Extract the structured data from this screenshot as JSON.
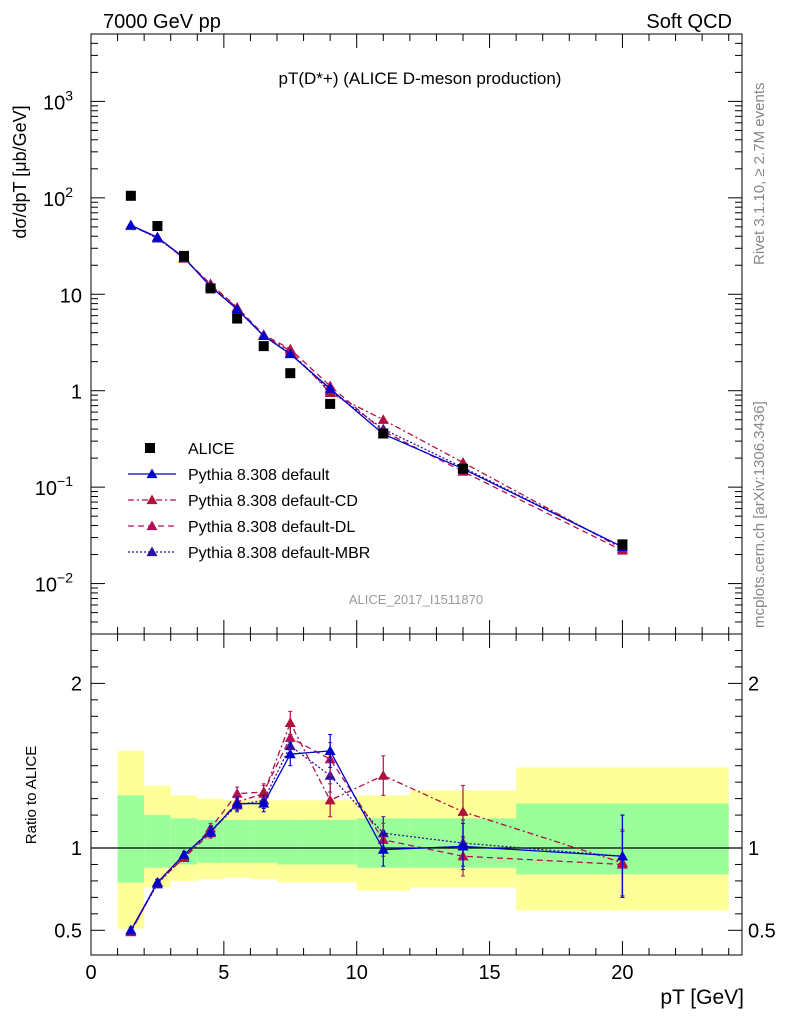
{
  "header": {
    "left": "7000 GeV pp",
    "right": "Soft QCD"
  },
  "side_text": {
    "top": "Rivet 3.1.10, ≥ 2.7M events",
    "bottom": "mcplots.cern.ch [arXiv:1306.3436]"
  },
  "chart_data": [
    {
      "type": "line",
      "panel": "main",
      "title": "pT(D*+) (ALICE D-meson production)",
      "ylabel": "dσ/dpT [μb/GeV]",
      "yscale": "log",
      "ylim": [
        0.003,
        5000
      ],
      "xlim": [
        0,
        24.5
      ],
      "yticks": [
        {
          "v": 0.01,
          "base": "10",
          "exp": "−2"
        },
        {
          "v": 0.1,
          "base": "10",
          "exp": "−1"
        },
        {
          "v": 1,
          "base": "1",
          "exp": ""
        },
        {
          "v": 10,
          "base": "10",
          "exp": ""
        },
        {
          "v": 100,
          "base": "10",
          "exp": "2"
        },
        {
          "v": 1000,
          "base": "10",
          "exp": "3"
        }
      ],
      "watermark": "ALICE_2017_I1511870",
      "data_series": {
        "name": "ALICE",
        "x": [
          1.5,
          2.5,
          3.5,
          4.5,
          5.5,
          6.5,
          7.5,
          9,
          11,
          14,
          20
        ],
        "y": [
          105,
          51,
          25,
          11.5,
          5.6,
          2.9,
          1.52,
          0.73,
          0.36,
          0.155,
          0.0255
        ]
      },
      "series": [
        {
          "name": "Pythia 8.308 default",
          "color": "#0000cc",
          "dash": "",
          "x": [
            1.5,
            2.5,
            3.5,
            4.5,
            5.5,
            6.5,
            7.5,
            9,
            11,
            14,
            20
          ],
          "y": [
            52,
            39,
            24,
            12,
            7,
            3.7,
            2.4,
            1.05,
            0.355,
            0.155,
            0.024
          ]
        },
        {
          "name": "Pythia 8.308 default-CD",
          "color": "#b0103c",
          "dash": "6,3,2,3",
          "x": [
            1.5,
            2.5,
            3.5,
            4.5,
            5.5,
            6.5,
            7.5,
            9,
            11,
            14,
            20
          ],
          "y": [
            52,
            39,
            23.5,
            12.5,
            7.2,
            3.7,
            2.6,
            0.95,
            0.5,
            0.18,
            0.023
          ]
        },
        {
          "name": "Pythia 8.308 default-DL",
          "color": "#b0105a",
          "dash": "6,4",
          "x": [
            1.5,
            2.5,
            3.5,
            4.5,
            5.5,
            6.5,
            7.5,
            9,
            11,
            14,
            20
          ],
          "y": [
            51,
            39,
            23.5,
            12.8,
            7.3,
            3.8,
            2.7,
            1.12,
            0.38,
            0.145,
            0.022
          ]
        },
        {
          "name": "Pythia 8.308 default-MBR",
          "color": "#3010a0",
          "dash": "2,2",
          "x": [
            1.5,
            2.5,
            3.5,
            4.5,
            5.5,
            6.5,
            7.5,
            9,
            11,
            14,
            20
          ],
          "y": [
            52,
            38,
            24,
            12.2,
            7,
            3.7,
            2.45,
            1.0,
            0.4,
            0.16,
            0.024
          ]
        }
      ]
    },
    {
      "type": "line",
      "panel": "ratio",
      "ylabel": "Ratio to ALICE",
      "xlabel": "pT [GeV]",
      "ylim": [
        0.35,
        2.3
      ],
      "xlim": [
        0,
        24.5
      ],
      "xticks": [
        0,
        5,
        10,
        15,
        20
      ],
      "yticks": [
        0.5,
        1,
        2
      ],
      "bands": {
        "edges": [
          1,
          2,
          3,
          4,
          5,
          6,
          7,
          8,
          10,
          12,
          16,
          24
        ],
        "inner": [
          [
            0.79,
            1.32
          ],
          [
            0.88,
            1.2
          ],
          [
            0.9,
            1.18
          ],
          [
            0.91,
            1.17
          ],
          [
            0.91,
            1.17
          ],
          [
            0.91,
            1.17
          ],
          [
            0.9,
            1.17
          ],
          [
            0.9,
            1.17
          ],
          [
            0.88,
            1.18
          ],
          [
            0.88,
            1.18
          ],
          [
            0.84,
            1.27
          ]
        ],
        "outer": [
          [
            0.51,
            1.59
          ],
          [
            0.76,
            1.38
          ],
          [
            0.8,
            1.32
          ],
          [
            0.81,
            1.3
          ],
          [
            0.82,
            1.29
          ],
          [
            0.81,
            1.29
          ],
          [
            0.79,
            1.29
          ],
          [
            0.79,
            1.29
          ],
          [
            0.74,
            1.32
          ],
          [
            0.76,
            1.35
          ],
          [
            0.62,
            1.49
          ]
        ]
      },
      "series": [
        {
          "name": "Pythia 8.308 default",
          "color": "#0000cc",
          "dash": "",
          "x": [
            1.5,
            2.5,
            3.5,
            4.5,
            5.5,
            6.5,
            7.5,
            9,
            11,
            14,
            20
          ],
          "y": [
            0.5,
            0.79,
            0.96,
            1.1,
            1.27,
            1.27,
            1.57,
            1.59,
            0.99,
            1.01,
            0.95
          ],
          "err": [
            0.02,
            0.02,
            0.02,
            0.03,
            0.04,
            0.05,
            0.07,
            0.1,
            0.1,
            0.14,
            0.25
          ]
        },
        {
          "name": "Pythia 8.308 default-CD",
          "color": "#b0103c",
          "dash": "6,3,2,3",
          "x": [
            1.5,
            2.5,
            3.5,
            4.5,
            5.5,
            6.5,
            7.5,
            9,
            11,
            14,
            20
          ],
          "y": [
            0.49,
            0.79,
            0.94,
            1.09,
            1.28,
            1.33,
            1.76,
            1.29,
            1.44,
            1.22,
            0.91
          ],
          "err": [
            0.02,
            0.02,
            0.02,
            0.03,
            0.04,
            0.05,
            0.07,
            0.1,
            0.12,
            0.16,
            0.2
          ]
        },
        {
          "name": "Pythia 8.308 default-DL",
          "color": "#b0105a",
          "dash": "6,4",
          "x": [
            1.5,
            2.5,
            3.5,
            4.5,
            5.5,
            6.5,
            7.5,
            9,
            11,
            14,
            20
          ],
          "y": [
            0.49,
            0.79,
            0.94,
            1.12,
            1.33,
            1.34,
            1.67,
            1.54,
            1.05,
            0.95,
            0.9
          ],
          "err": [
            0.02,
            0.02,
            0.02,
            0.03,
            0.04,
            0.05,
            0.07,
            0.1,
            0.1,
            0.12,
            0.2
          ]
        },
        {
          "name": "Pythia 8.308 default-MBR",
          "color": "#3010a0",
          "dash": "2,2",
          "x": [
            1.5,
            2.5,
            3.5,
            4.5,
            5.5,
            6.5,
            7.5,
            9,
            11,
            14,
            20
          ],
          "y": [
            0.5,
            0.78,
            0.95,
            1.1,
            1.26,
            1.29,
            1.62,
            1.44,
            1.09,
            1.03,
            0.95
          ],
          "err": [
            0.02,
            0.02,
            0.02,
            0.03,
            0.04,
            0.05,
            0.07,
            0.1,
            0.1,
            0.14,
            0.25
          ]
        }
      ]
    }
  ]
}
